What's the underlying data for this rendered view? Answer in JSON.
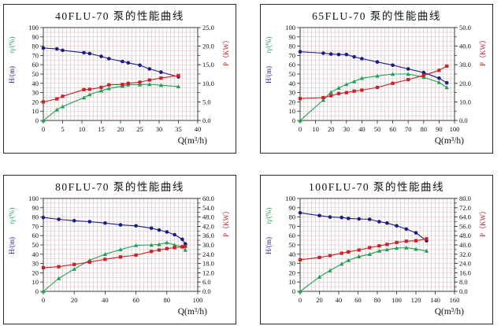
{
  "colors": {
    "head": "#1b1b86",
    "efficiency": "#1fa055",
    "power": "#cc2027",
    "h_grid": "#eab6b6",
    "v_grid": "#adadad",
    "axis": "#2a2a2a",
    "tick_text": "#111111"
  },
  "chart_data": [
    {
      "type": "line",
      "title": "40FLU-70 泵的性能曲线",
      "x_axis": {
        "label": "Q(m³/h)",
        "min": 0,
        "max": 40,
        "ticks": [
          0,
          5,
          10,
          15,
          20,
          25,
          30,
          35,
          40
        ],
        "minor_grid_step": 1
      },
      "left_axis": {
        "labels": [
          {
            "text": "η/(%)",
            "color": "#1fa055"
          },
          {
            "text": "H/(m)",
            "color": "#1b1b86"
          }
        ],
        "min": 0,
        "max": 100,
        "ticks": [
          0,
          10,
          20,
          30,
          40,
          50,
          60,
          70,
          80,
          90,
          100
        ],
        "grid_step": 5
      },
      "right_axis": {
        "label": "P（KW）",
        "color": "#cc2027",
        "min": 0,
        "max": 25,
        "ticks": [
          0,
          5,
          10,
          15,
          20,
          25
        ],
        "minor_tick_step": 2.5,
        "decimals": 1
      },
      "series": [
        {
          "key": "head",
          "name": "H",
          "axis": "left",
          "marker": "circle",
          "color": "#1b1b86",
          "x": [
            0,
            3.5,
            5,
            10.5,
            12,
            15,
            17,
            20.5,
            22,
            25,
            27.5,
            30.5,
            35
          ],
          "y": [
            78,
            77,
            75.5,
            73,
            72,
            69,
            66.5,
            63.5,
            62,
            59.5,
            55.5,
            52,
            47
          ]
        },
        {
          "key": "efficiency",
          "name": "η",
          "axis": "left",
          "marker": "triangle",
          "color": "#1fa055",
          "x": [
            0,
            3.5,
            5,
            10.5,
            12,
            15,
            17,
            20.5,
            22,
            25,
            27.5,
            30.5,
            35
          ],
          "y": [
            0,
            11.5,
            15,
            24.5,
            28,
            32,
            34.5,
            37,
            38.5,
            38.5,
            39,
            38,
            36.5
          ]
        },
        {
          "key": "power",
          "name": "P",
          "axis": "right",
          "marker": "square",
          "color": "#cc2027",
          "x": [
            0,
            3.5,
            5,
            10.5,
            12,
            15,
            17,
            20.5,
            22,
            25,
            27.5,
            30.5,
            35
          ],
          "y": [
            5.0,
            5.8,
            6.5,
            8.3,
            8.4,
            8.9,
            9.6,
            9.7,
            10.0,
            10.3,
            10.9,
            11.4,
            12.1
          ]
        }
      ]
    },
    {
      "type": "line",
      "title": "65FLU-70 泵的性能曲线",
      "x_axis": {
        "label": "Q(m³/h)",
        "min": 0,
        "max": 100,
        "ticks": [
          0,
          10,
          20,
          30,
          40,
          50,
          60,
          70,
          80,
          90,
          100
        ],
        "minor_grid_step": 2.5
      },
      "left_axis": {
        "labels": [
          {
            "text": "η/(%)",
            "color": "#1fa055"
          },
          {
            "text": "H/(m)",
            "color": "#1b1b86"
          }
        ],
        "min": 0,
        "max": 100,
        "ticks": [
          0,
          10,
          20,
          30,
          40,
          50,
          60,
          70,
          80,
          90,
          100
        ],
        "grid_step": 5
      },
      "right_axis": {
        "label": "P（KW）",
        "color": "#cc2027",
        "min": 0,
        "max": 50,
        "ticks": [
          0,
          10,
          20,
          30,
          40,
          50
        ],
        "minor_tick_step": 5,
        "decimals": 1
      },
      "series": [
        {
          "key": "head",
          "name": "H",
          "axis": "left",
          "marker": "circle",
          "color": "#1b1b86",
          "x": [
            0,
            15,
            20,
            25,
            30,
            35,
            40,
            50,
            60,
            70,
            80,
            90,
            95
          ],
          "y": [
            74,
            72.5,
            71.5,
            71,
            71,
            68.5,
            66.5,
            63,
            59.5,
            55.5,
            51.5,
            45.5,
            40.5
          ]
        },
        {
          "key": "efficiency",
          "name": "η",
          "axis": "left",
          "marker": "triangle",
          "color": "#1fa055",
          "x": [
            0,
            15,
            20,
            25,
            30,
            35,
            40,
            50,
            60,
            70,
            80,
            90,
            95
          ],
          "y": [
            0,
            22,
            30.5,
            35,
            39,
            42,
            45.5,
            48,
            50,
            50,
            46.5,
            41,
            35.5
          ]
        },
        {
          "key": "power",
          "name": "P",
          "axis": "right",
          "marker": "square",
          "color": "#cc2027",
          "x": [
            0,
            15,
            20,
            25,
            30,
            35,
            40,
            50,
            60,
            70,
            80,
            90,
            95
          ],
          "y": [
            11.8,
            12.3,
            13.3,
            14.5,
            15.0,
            15.8,
            16.3,
            17.8,
            20.0,
            22.0,
            24.3,
            27.0,
            29.3
          ]
        }
      ]
    },
    {
      "type": "line",
      "title": "80FLU-70 泵的性能曲线",
      "x_axis": {
        "label": "Q(m³/h)",
        "min": 0,
        "max": 100,
        "ticks": [
          0,
          20,
          40,
          60,
          80,
          100
        ],
        "minor_grid_step": 2.5
      },
      "left_axis": {
        "labels": [
          {
            "text": "η/(%)",
            "color": "#1fa055"
          },
          {
            "text": "H/(m)",
            "color": "#1b1b86"
          }
        ],
        "min": 0,
        "max": 100,
        "ticks": [
          0,
          10,
          20,
          30,
          40,
          50,
          60,
          70,
          80,
          90,
          100
        ],
        "grid_step": 5
      },
      "right_axis": {
        "label": "P（KW）",
        "color": "#cc2027",
        "min": 0,
        "max": 60,
        "ticks": [
          0,
          6,
          12,
          18,
          24,
          30,
          36,
          42,
          48,
          54,
          60
        ],
        "minor_tick_step": 3,
        "decimals": 1
      },
      "series": [
        {
          "key": "head",
          "name": "H",
          "axis": "left",
          "marker": "circle",
          "color": "#1b1b86",
          "x": [
            0,
            10,
            20,
            30,
            40,
            50,
            60,
            70,
            75,
            80,
            85,
            90,
            92
          ],
          "y": [
            79.5,
            77.5,
            76,
            75,
            73.5,
            71.5,
            70.5,
            68,
            66,
            64,
            61,
            56,
            51
          ]
        },
        {
          "key": "efficiency",
          "name": "η",
          "axis": "left",
          "marker": "triangle",
          "color": "#1fa055",
          "x": [
            0,
            10,
            20,
            30,
            40,
            50,
            60,
            70,
            75,
            80,
            85,
            90,
            92
          ],
          "y": [
            0,
            14,
            24,
            33.5,
            40,
            45,
            49.5,
            50,
            50.5,
            52.5,
            50,
            48,
            44.5
          ]
        },
        {
          "key": "power",
          "name": "P",
          "axis": "right",
          "marker": "square",
          "color": "#cc2027",
          "x": [
            0,
            10,
            20,
            30,
            40,
            50,
            60,
            70,
            75,
            80,
            85,
            90,
            92
          ],
          "y": [
            15.3,
            15.9,
            17.4,
            18.9,
            20.7,
            22.2,
            23.4,
            25.8,
            26.7,
            27.6,
            28.2,
            28.8,
            29.1
          ]
        }
      ]
    },
    {
      "type": "line",
      "title": "100FLU-70 泵的性能曲线",
      "x_axis": {
        "label": "Q(m³/h)",
        "min": 0,
        "max": 160,
        "ticks": [
          0,
          20,
          40,
          60,
          80,
          100,
          120,
          140,
          160
        ],
        "minor_grid_step": 4
      },
      "left_axis": {
        "labels": [
          {
            "text": "η/(%)",
            "color": "#1fa055"
          },
          {
            "text": "H/(m)",
            "color": "#1b1b86"
          }
        ],
        "min": 0,
        "max": 100,
        "ticks": [
          0,
          10,
          20,
          30,
          40,
          50,
          60,
          70,
          80,
          90,
          100
        ],
        "grid_step": 5
      },
      "right_axis": {
        "label": "P（KW）",
        "color": "#cc2027",
        "min": 0,
        "max": 80,
        "ticks": [
          0,
          8,
          16,
          24,
          32,
          40,
          48,
          56,
          64,
          72,
          80
        ],
        "minor_tick_step": 4,
        "decimals": 1
      },
      "series": [
        {
          "key": "head",
          "name": "H",
          "axis": "left",
          "marker": "circle",
          "color": "#1b1b86",
          "x": [
            0,
            20,
            31,
            43,
            50,
            61,
            72,
            82,
            90,
            100,
            110,
            120,
            131
          ],
          "y": [
            84.5,
            81.5,
            80,
            79.5,
            78.5,
            78,
            77.5,
            75,
            73.5,
            70.5,
            67,
            63,
            54.5
          ]
        },
        {
          "key": "efficiency",
          "name": "η",
          "axis": "left",
          "marker": "triangle",
          "color": "#1fa055",
          "x": [
            0,
            20,
            31,
            43,
            50,
            61,
            72,
            82,
            90,
            100,
            110,
            120,
            131
          ],
          "y": [
            0,
            15.5,
            22.5,
            29.5,
            33.5,
            37.5,
            40,
            43.5,
            45,
            46.5,
            47,
            45.5,
            43.5
          ]
        },
        {
          "key": "power",
          "name": "P",
          "axis": "right",
          "marker": "square",
          "color": "#cc2027",
          "x": [
            0,
            20,
            31,
            43,
            50,
            61,
            72,
            82,
            90,
            100,
            110,
            120,
            131
          ],
          "y": [
            27.2,
            29.2,
            30.8,
            32.8,
            34.0,
            35.6,
            37.6,
            39.2,
            40.4,
            42.0,
            43.2,
            43.6,
            45.2
          ]
        }
      ]
    }
  ]
}
